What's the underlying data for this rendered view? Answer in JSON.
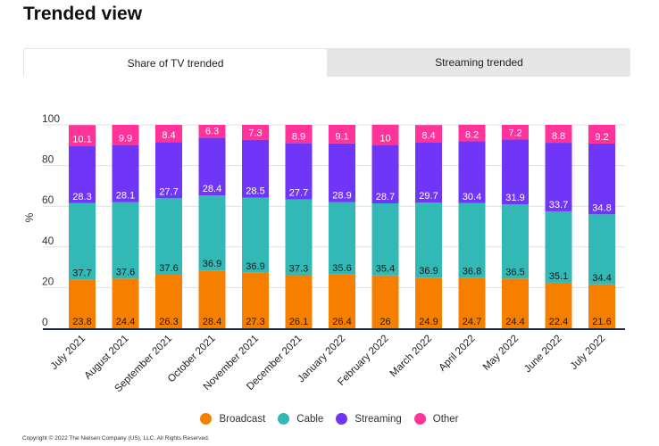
{
  "title": "Trended view",
  "tabs": [
    {
      "label": "Share of TV trended",
      "active": true
    },
    {
      "label": "Streaming trended",
      "active": false
    }
  ],
  "copyright": "Copyright © 2022 The Nielsen Company (US), LLC. All Rights Reserved.",
  "chart_data": {
    "type": "bar",
    "stacked": true,
    "ylabel": "%",
    "ylim": [
      0,
      100
    ],
    "yticks": [
      0,
      20,
      40,
      60,
      80,
      100
    ],
    "grid": true,
    "legend_placement": "bottom",
    "categories": [
      "July 2021",
      "August 2021",
      "September 2021",
      "October 2021",
      "November 2021",
      "December 2021",
      "January 2022",
      "February 2022",
      "March 2022",
      "April 2022",
      "May 2022",
      "June 2022",
      "July 2022"
    ],
    "series": [
      {
        "name": "Broadcast",
        "color": "#F77F00",
        "values": [
          23.8,
          24.4,
          26.3,
          28.4,
          27.3,
          26.1,
          26.4,
          26,
          24.9,
          24.7,
          24.4,
          22.4,
          21.6
        ]
      },
      {
        "name": "Cable",
        "color": "#32B9B5",
        "values": [
          37.7,
          37.6,
          37.6,
          36.9,
          36.9,
          37.3,
          35.6,
          35.4,
          36.9,
          36.8,
          36.5,
          35.1,
          34.4
        ]
      },
      {
        "name": "Streaming",
        "color": "#7036F7",
        "values": [
          28.3,
          28.1,
          27.7,
          28.4,
          28.5,
          27.7,
          28.9,
          28.7,
          29.7,
          30.4,
          31.9,
          33.7,
          34.8
        ]
      },
      {
        "name": "Other",
        "color": "#FF3399",
        "values": [
          10.1,
          9.9,
          8.4,
          6.3,
          7.3,
          8.9,
          9.1,
          10,
          8.4,
          8.2,
          7.2,
          8.8,
          9.2
        ]
      }
    ]
  }
}
